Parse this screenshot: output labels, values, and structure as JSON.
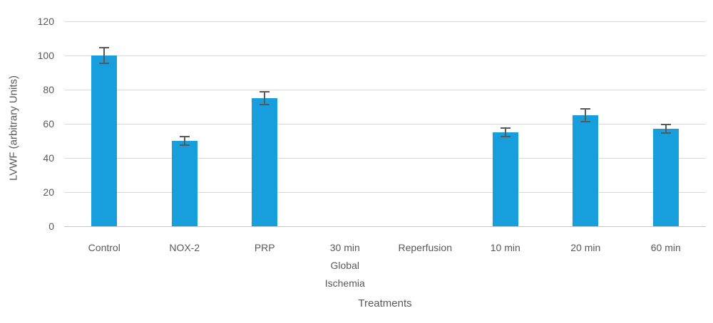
{
  "chart_data": {
    "type": "bar",
    "title": "",
    "xlabel": "Treatments",
    "ylabel": "LVWF (arbitrary Units)",
    "categories": [
      "Control",
      "NOX-2",
      "PRP",
      "30 min Global Ischemia",
      "Reperfusion",
      "10 min",
      "20 min",
      "60 min"
    ],
    "category_label_lines": [
      [
        "Control"
      ],
      [
        "NOX-2"
      ],
      [
        "PRP"
      ],
      [
        "30 min",
        "Global",
        "Ischemia"
      ],
      [
        "Reperfusion"
      ],
      [
        "10 min"
      ],
      [
        "20 min"
      ],
      [
        "60 min"
      ]
    ],
    "values": [
      100,
      50,
      75,
      0,
      0,
      55,
      65,
      57
    ],
    "error_bars": [
      5,
      3,
      4,
      0,
      0,
      3,
      4,
      3
    ],
    "ylim": [
      0,
      120
    ],
    "yticks": [
      0,
      20,
      40,
      60,
      80,
      100,
      120
    ],
    "grid": "horizontal",
    "legend": "none",
    "colors": {
      "bar": "#179fdd",
      "error_bar": "#595959",
      "gridline": "#d9d9d9",
      "axis_line": "#c6c6c6",
      "text": "#595959"
    }
  }
}
